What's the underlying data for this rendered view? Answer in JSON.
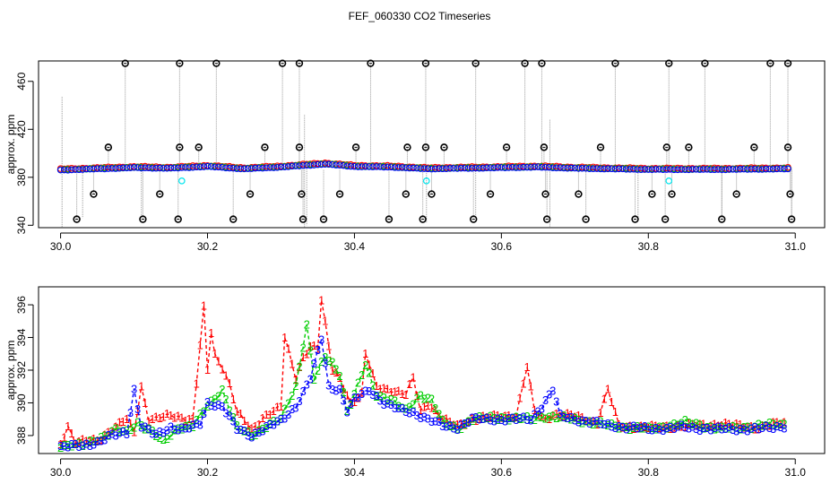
{
  "figure": {
    "title": "FEF_060330  CO2 Timeseries"
  },
  "chart_data": [
    {
      "type": "scatter",
      "ylabel": "approx. ppm",
      "xlim": [
        29.97,
        31.04
      ],
      "ylim": [
        338,
        477
      ],
      "xticks": [
        30.0,
        30.2,
        30.4,
        30.6,
        30.8,
        31.0
      ],
      "xtick_labels": [
        "30.0",
        "30.2",
        "30.4",
        "30.6",
        "30.8",
        "31.0"
      ],
      "yticks": [
        340,
        380,
        420,
        460
      ],
      "ytick_labels": [
        "340",
        "380",
        "420",
        "460"
      ],
      "baseline": {
        "start": 30.0,
        "end": 30.99,
        "step": 0.005,
        "value": 386.5
      },
      "segments": [
        {
          "x": 30.0,
          "y": 386
        },
        {
          "x": 30.05,
          "y": 387
        },
        {
          "x": 30.1,
          "y": 388
        },
        {
          "x": 30.15,
          "y": 387.5
        },
        {
          "x": 30.2,
          "y": 389
        },
        {
          "x": 30.25,
          "y": 387
        },
        {
          "x": 30.3,
          "y": 388.5
        },
        {
          "x": 30.36,
          "y": 391
        },
        {
          "x": 30.4,
          "y": 389
        },
        {
          "x": 30.45,
          "y": 388.5
        },
        {
          "x": 30.5,
          "y": 387
        },
        {
          "x": 30.55,
          "y": 387.5
        },
        {
          "x": 30.6,
          "y": 388
        },
        {
          "x": 30.65,
          "y": 388.5
        },
        {
          "x": 30.7,
          "y": 387.5
        },
        {
          "x": 30.75,
          "y": 387
        },
        {
          "x": 30.8,
          "y": 386.5
        },
        {
          "x": 30.85,
          "y": 386.5
        },
        {
          "x": 30.9,
          "y": 386.5
        },
        {
          "x": 30.99,
          "y": 387
        }
      ],
      "gaps": [
        {
          "x": 30.165,
          "y": 377
        },
        {
          "x": 30.498,
          "y": 377
        },
        {
          "x": 30.828,
          "y": 377
        }
      ],
      "spikes": [
        {
          "x": 30.088,
          "y": 475
        },
        {
          "x": 30.162,
          "y": 475
        },
        {
          "x": 30.212,
          "y": 475
        },
        {
          "x": 30.302,
          "y": 475
        },
        {
          "x": 30.325,
          "y": 475
        },
        {
          "x": 30.422,
          "y": 475
        },
        {
          "x": 30.497,
          "y": 475
        },
        {
          "x": 30.565,
          "y": 475
        },
        {
          "x": 30.632,
          "y": 475
        },
        {
          "x": 30.655,
          "y": 475
        },
        {
          "x": 30.755,
          "y": 475
        },
        {
          "x": 30.828,
          "y": 475
        },
        {
          "x": 30.877,
          "y": 475
        },
        {
          "x": 30.966,
          "y": 475
        },
        {
          "x": 30.99,
          "y": 475
        },
        {
          "x": 30.065,
          "y": 405
        },
        {
          "x": 30.162,
          "y": 405
        },
        {
          "x": 30.188,
          "y": 405
        },
        {
          "x": 30.278,
          "y": 405
        },
        {
          "x": 30.325,
          "y": 405
        },
        {
          "x": 30.402,
          "y": 405
        },
        {
          "x": 30.472,
          "y": 405
        },
        {
          "x": 30.497,
          "y": 405
        },
        {
          "x": 30.522,
          "y": 405
        },
        {
          "x": 30.607,
          "y": 405
        },
        {
          "x": 30.658,
          "y": 405
        },
        {
          "x": 30.735,
          "y": 405
        },
        {
          "x": 30.825,
          "y": 405
        },
        {
          "x": 30.855,
          "y": 405
        },
        {
          "x": 30.944,
          "y": 405
        },
        {
          "x": 30.99,
          "y": 405
        },
        {
          "x": 30.045,
          "y": 366
        },
        {
          "x": 30.135,
          "y": 366
        },
        {
          "x": 30.258,
          "y": 366
        },
        {
          "x": 30.328,
          "y": 366
        },
        {
          "x": 30.38,
          "y": 366
        },
        {
          "x": 30.47,
          "y": 366
        },
        {
          "x": 30.505,
          "y": 366
        },
        {
          "x": 30.585,
          "y": 366
        },
        {
          "x": 30.66,
          "y": 366
        },
        {
          "x": 30.705,
          "y": 366
        },
        {
          "x": 30.805,
          "y": 366
        },
        {
          "x": 30.832,
          "y": 366
        },
        {
          "x": 30.92,
          "y": 366
        },
        {
          "x": 30.993,
          "y": 366
        },
        {
          "x": 30.022,
          "y": 345
        },
        {
          "x": 30.112,
          "y": 345
        },
        {
          "x": 30.16,
          "y": 345
        },
        {
          "x": 30.235,
          "y": 345
        },
        {
          "x": 30.33,
          "y": 345
        },
        {
          "x": 30.358,
          "y": 345
        },
        {
          "x": 30.447,
          "y": 345
        },
        {
          "x": 30.493,
          "y": 345
        },
        {
          "x": 30.562,
          "y": 345
        },
        {
          "x": 30.662,
          "y": 345
        },
        {
          "x": 30.715,
          "y": 345
        },
        {
          "x": 30.782,
          "y": 345
        },
        {
          "x": 30.823,
          "y": 345
        },
        {
          "x": 30.9,
          "y": 345
        },
        {
          "x": 30.995,
          "y": 345
        }
      ],
      "greybars": [
        {
          "x": 30.002,
          "low": 338,
          "high": 447
        },
        {
          "x": 30.332,
          "low": 338,
          "high": 432
        },
        {
          "x": 30.666,
          "low": 338,
          "high": 428
        },
        {
          "x": 30.335,
          "low": 340,
          "high": 388
        },
        {
          "x": 30.498,
          "low": 342,
          "high": 388
        },
        {
          "x": 30.03,
          "low": 346,
          "high": 388
        },
        {
          "x": 30.11,
          "low": 346,
          "high": 388
        },
        {
          "x": 30.565,
          "low": 346,
          "high": 388
        },
        {
          "x": 30.786,
          "low": 346,
          "high": 388
        },
        {
          "x": 30.9,
          "low": 346,
          "high": 388
        },
        {
          "x": 30.995,
          "low": 346,
          "high": 388
        }
      ],
      "colors": {
        "s1": "#ff0000",
        "s2": "#00cd00",
        "s3": "#0000ff",
        "spike": "#000000",
        "gap": "#00e5ee",
        "greybar": "#9a9a9a"
      }
    },
    {
      "type": "line",
      "ylabel": "approx. ppm",
      "xlim": [
        29.97,
        31.04
      ],
      "ylim": [
        386.9,
        397.1
      ],
      "xticks": [
        30.0,
        30.2,
        30.4,
        30.6,
        30.8,
        31.0
      ],
      "xtick_labels": [
        "30.0",
        "30.2",
        "30.4",
        "30.6",
        "30.8",
        "31.0"
      ],
      "yticks": [
        388,
        390,
        392,
        394,
        396
      ],
      "ytick_labels": [
        "388",
        "390",
        "392",
        "394",
        "396"
      ],
      "step": 0.005,
      "gap_after": [
        30.17,
        30.5,
        30.67,
        30.83
      ],
      "series": [
        {
          "label": "1",
          "color": "#ff0000",
          "points": [
            {
              "x": 30.0,
              "y": 387.5
            },
            {
              "x": 30.01,
              "y": 388.6
            },
            {
              "x": 30.02,
              "y": 387.6
            },
            {
              "x": 30.05,
              "y": 387.7
            },
            {
              "x": 30.07,
              "y": 388.4
            },
            {
              "x": 30.09,
              "y": 389.0
            },
            {
              "x": 30.1,
              "y": 388.2
            },
            {
              "x": 30.11,
              "y": 391.0
            },
            {
              "x": 30.12,
              "y": 389.0
            },
            {
              "x": 30.15,
              "y": 389.2
            },
            {
              "x": 30.18,
              "y": 389.0
            },
            {
              "x": 30.195,
              "y": 395.8
            },
            {
              "x": 30.2,
              "y": 392.0
            },
            {
              "x": 30.205,
              "y": 394.3
            },
            {
              "x": 30.21,
              "y": 392.9
            },
            {
              "x": 30.22,
              "y": 392.2
            },
            {
              "x": 30.23,
              "y": 391.2
            },
            {
              "x": 30.24,
              "y": 389.5
            },
            {
              "x": 30.26,
              "y": 388.3
            },
            {
              "x": 30.28,
              "y": 389.3
            },
            {
              "x": 30.3,
              "y": 389.8
            },
            {
              "x": 30.305,
              "y": 394.0
            },
            {
              "x": 30.32,
              "y": 391.5
            },
            {
              "x": 30.33,
              "y": 392.8
            },
            {
              "x": 30.34,
              "y": 393.5
            },
            {
              "x": 30.35,
              "y": 393.4
            },
            {
              "x": 30.355,
              "y": 396.3
            },
            {
              "x": 30.37,
              "y": 392.0
            },
            {
              "x": 30.38,
              "y": 391.5
            },
            {
              "x": 30.395,
              "y": 390.0
            },
            {
              "x": 30.41,
              "y": 390.5
            },
            {
              "x": 30.415,
              "y": 393.0
            },
            {
              "x": 30.43,
              "y": 391.0
            },
            {
              "x": 30.45,
              "y": 390.8
            },
            {
              "x": 30.47,
              "y": 390.5
            },
            {
              "x": 30.48,
              "y": 391.5
            },
            {
              "x": 30.49,
              "y": 389.5
            },
            {
              "x": 30.5,
              "y": 390.0
            },
            {
              "x": 30.52,
              "y": 389.0
            },
            {
              "x": 30.54,
              "y": 388.6
            },
            {
              "x": 30.56,
              "y": 389.0
            },
            {
              "x": 30.6,
              "y": 389.2
            },
            {
              "x": 30.62,
              "y": 389.2
            },
            {
              "x": 30.635,
              "y": 392.2
            },
            {
              "x": 30.645,
              "y": 389.5
            },
            {
              "x": 30.66,
              "y": 389.0
            },
            {
              "x": 30.67,
              "y": 389.3
            },
            {
              "x": 30.7,
              "y": 389.2
            },
            {
              "x": 30.73,
              "y": 388.8
            },
            {
              "x": 30.745,
              "y": 390.8
            },
            {
              "x": 30.76,
              "y": 388.6
            },
            {
              "x": 30.8,
              "y": 388.5
            },
            {
              "x": 30.85,
              "y": 388.6
            },
            {
              "x": 30.9,
              "y": 388.7
            },
            {
              "x": 30.95,
              "y": 388.5
            },
            {
              "x": 30.985,
              "y": 388.8
            }
          ]
        },
        {
          "label": "2",
          "color": "#00cd00",
          "points": [
            {
              "x": 30.0,
              "y": 387.4
            },
            {
              "x": 30.03,
              "y": 387.4
            },
            {
              "x": 30.06,
              "y": 388.0
            },
            {
              "x": 30.075,
              "y": 388.3
            },
            {
              "x": 30.09,
              "y": 388.2
            },
            {
              "x": 30.105,
              "y": 388.8
            },
            {
              "x": 30.12,
              "y": 388.4
            },
            {
              "x": 30.14,
              "y": 387.6
            },
            {
              "x": 30.16,
              "y": 388.5
            },
            {
              "x": 30.18,
              "y": 388.6
            },
            {
              "x": 30.2,
              "y": 389.8
            },
            {
              "x": 30.22,
              "y": 390.8
            },
            {
              "x": 30.24,
              "y": 388.5
            },
            {
              "x": 30.26,
              "y": 388.0
            },
            {
              "x": 30.28,
              "y": 388.6
            },
            {
              "x": 30.3,
              "y": 389.0
            },
            {
              "x": 30.32,
              "y": 391.0
            },
            {
              "x": 30.335,
              "y": 394.8
            },
            {
              "x": 30.345,
              "y": 391.5
            },
            {
              "x": 30.36,
              "y": 392.8
            },
            {
              "x": 30.37,
              "y": 392.4
            },
            {
              "x": 30.38,
              "y": 391.8
            },
            {
              "x": 30.39,
              "y": 389.5
            },
            {
              "x": 30.4,
              "y": 390.5
            },
            {
              "x": 30.415,
              "y": 392.3
            },
            {
              "x": 30.43,
              "y": 390.5
            },
            {
              "x": 30.45,
              "y": 390.2
            },
            {
              "x": 30.47,
              "y": 389.5
            },
            {
              "x": 30.49,
              "y": 390.5
            },
            {
              "x": 30.505,
              "y": 390.2
            },
            {
              "x": 30.52,
              "y": 388.8
            },
            {
              "x": 30.54,
              "y": 388.4
            },
            {
              "x": 30.56,
              "y": 389.0
            },
            {
              "x": 30.6,
              "y": 389.1
            },
            {
              "x": 30.64,
              "y": 389.0
            },
            {
              "x": 30.66,
              "y": 389.2
            },
            {
              "x": 30.7,
              "y": 389.0
            },
            {
              "x": 30.75,
              "y": 388.6
            },
            {
              "x": 30.8,
              "y": 388.4
            },
            {
              "x": 30.85,
              "y": 388.8
            },
            {
              "x": 30.9,
              "y": 388.4
            },
            {
              "x": 30.95,
              "y": 388.6
            },
            {
              "x": 30.985,
              "y": 388.7
            }
          ]
        },
        {
          "label": "3",
          "color": "#0000ff",
          "points": [
            {
              "x": 30.0,
              "y": 387.3
            },
            {
              "x": 30.03,
              "y": 387.4
            },
            {
              "x": 30.05,
              "y": 387.6
            },
            {
              "x": 30.07,
              "y": 388.0
            },
            {
              "x": 30.09,
              "y": 388.2
            },
            {
              "x": 30.1,
              "y": 390.8
            },
            {
              "x": 30.11,
              "y": 388.6
            },
            {
              "x": 30.13,
              "y": 388.0
            },
            {
              "x": 30.15,
              "y": 388.5
            },
            {
              "x": 30.17,
              "y": 388.4
            },
            {
              "x": 30.19,
              "y": 388.7
            },
            {
              "x": 30.2,
              "y": 390.0
            },
            {
              "x": 30.22,
              "y": 389.8
            },
            {
              "x": 30.24,
              "y": 388.4
            },
            {
              "x": 30.26,
              "y": 388.0
            },
            {
              "x": 30.28,
              "y": 388.5
            },
            {
              "x": 30.3,
              "y": 388.9
            },
            {
              "x": 30.32,
              "y": 389.8
            },
            {
              "x": 30.34,
              "y": 391.5
            },
            {
              "x": 30.355,
              "y": 393.9
            },
            {
              "x": 30.365,
              "y": 391.0
            },
            {
              "x": 30.38,
              "y": 390.8
            },
            {
              "x": 30.39,
              "y": 389.5
            },
            {
              "x": 30.4,
              "y": 390.2
            },
            {
              "x": 30.42,
              "y": 390.8
            },
            {
              "x": 30.44,
              "y": 390.0
            },
            {
              "x": 30.46,
              "y": 389.6
            },
            {
              "x": 30.48,
              "y": 389.4
            },
            {
              "x": 30.5,
              "y": 389.0
            },
            {
              "x": 30.52,
              "y": 388.6
            },
            {
              "x": 30.54,
              "y": 388.5
            },
            {
              "x": 30.56,
              "y": 389.0
            },
            {
              "x": 30.6,
              "y": 389.0
            },
            {
              "x": 30.64,
              "y": 389.0
            },
            {
              "x": 30.655,
              "y": 389.8
            },
            {
              "x": 30.67,
              "y": 390.8
            },
            {
              "x": 30.68,
              "y": 389.2
            },
            {
              "x": 30.7,
              "y": 389.0
            },
            {
              "x": 30.75,
              "y": 388.6
            },
            {
              "x": 30.8,
              "y": 388.4
            },
            {
              "x": 30.85,
              "y": 388.5
            },
            {
              "x": 30.9,
              "y": 388.4
            },
            {
              "x": 30.95,
              "y": 388.4
            },
            {
              "x": 30.985,
              "y": 388.6
            }
          ]
        }
      ]
    }
  ]
}
